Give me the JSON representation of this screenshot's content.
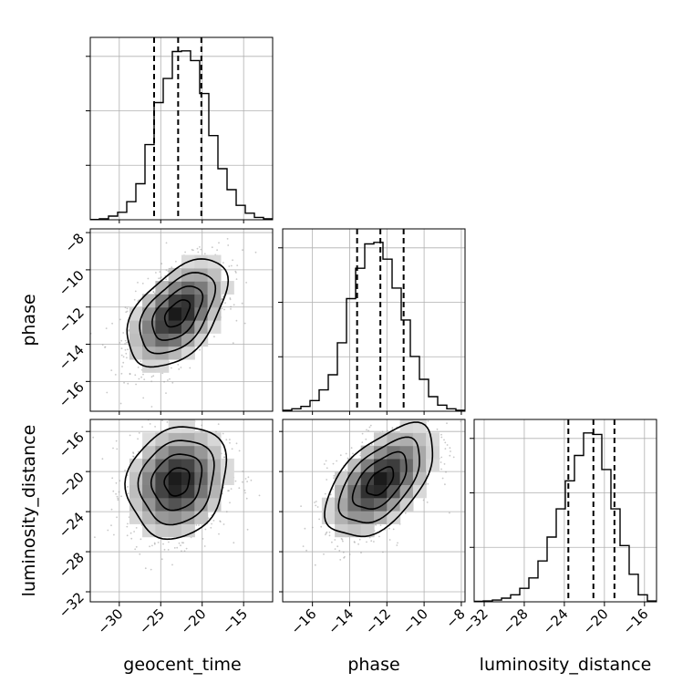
{
  "chart_data": {
    "type": "corner",
    "parameters": [
      "geocent_time",
      "phase",
      "luminosity_distance"
    ],
    "grid": true,
    "colors": {
      "line": "#000000",
      "grid": "#b0b0b0",
      "scatter": "#9a9a9a",
      "frame": "#000000"
    },
    "axes": {
      "geocent_time": {
        "label": "geocent_time",
        "range": [
          -33.5,
          -11.5
        ],
        "ticks": [
          -30,
          -25,
          -20,
          -15
        ],
        "tick_labels": [
          "−30",
          "−25",
          "−20",
          "−15"
        ]
      },
      "phase": {
        "label": "phase",
        "range": [
          -17.6,
          -7.8
        ],
        "ticks": [
          -16,
          -14,
          -12,
          -10,
          -8
        ],
        "tick_labels": [
          "−16",
          "−14",
          "−12",
          "−10",
          "−8"
        ]
      },
      "luminosity_distance": {
        "label": "luminosity_distance",
        "range": [
          -33.0,
          -14.8
        ],
        "ticks": [
          -32,
          -28,
          -24,
          -20,
          -16
        ],
        "tick_labels": [
          "−32",
          "−28",
          "−24",
          "−20",
          "−16"
        ]
      }
    },
    "histograms": [
      {
        "parameter": "geocent_time",
        "bin_edges": [
          -33.5,
          -32.4,
          -31.3,
          -30.2,
          -29.1,
          -28,
          -26.9,
          -25.8,
          -24.7,
          -23.6,
          -22.5,
          -21.4,
          -20.3,
          -19.2,
          -18.1,
          -17,
          -15.9,
          -14.8,
          -13.7,
          -12.6,
          -11.5
        ],
        "counts": [
          1,
          3,
          12,
          25,
          60,
          120,
          250,
          390,
          470,
          560,
          562,
          530,
          420,
          280,
          170,
          100,
          48,
          22,
          8,
          3
        ],
        "quantiles": [
          -25.8,
          -22.9,
          -20.1
        ]
      },
      {
        "parameter": "phase",
        "bin_edges": [
          -17.6,
          -17.11,
          -16.62,
          -16.13,
          -15.64,
          -15.15,
          -14.66,
          -14.17,
          -13.68,
          -13.19,
          -12.7,
          -12.21,
          -11.72,
          -11.23,
          -10.74,
          -10.25,
          -9.76,
          -9.27,
          -8.78,
          -8.29,
          -7.8
        ],
        "counts": [
          3,
          8,
          16,
          35,
          70,
          120,
          225,
          370,
          470,
          550,
          555,
          500,
          405,
          300,
          180,
          105,
          48,
          20,
          8,
          3
        ],
        "quantiles": [
          -13.6,
          -12.35,
          -11.1
        ]
      },
      {
        "parameter": "luminosity_distance",
        "bin_edges": [
          -33.0,
          -32.09,
          -31.18,
          -30.27,
          -29.36,
          -28.45,
          -27.54,
          -26.63,
          -25.72,
          -24.81,
          -23.9,
          -22.99,
          -22.08,
          -21.17,
          -20.26,
          -19.35,
          -18.44,
          -17.53,
          -16.62,
          -15.71,
          -14.8
        ],
        "counts": [
          2,
          3,
          6,
          13,
          25,
          48,
          85,
          145,
          230,
          330,
          430,
          520,
          600,
          595,
          470,
          330,
          200,
          98,
          25,
          3
        ],
        "quantiles": [
          -23.6,
          -21.1,
          -19.0
        ]
      }
    ],
    "pairs": [
      {
        "x": "geocent_time",
        "y": "phase",
        "center": [
          -23.0,
          -12.35
        ],
        "sigma": [
          3.0,
          1.45
        ],
        "rho": 0.5
      },
      {
        "x": "geocent_time",
        "y": "luminosity_distance",
        "center": [
          -23.0,
          -21.0
        ],
        "sigma": [
          3.0,
          2.8
        ],
        "rho": 0.15
      },
      {
        "x": "phase",
        "y": "luminosity_distance",
        "center": [
          -12.35,
          -21.0
        ],
        "sigma": [
          1.45,
          2.8
        ],
        "rho": 0.55
      }
    ]
  }
}
